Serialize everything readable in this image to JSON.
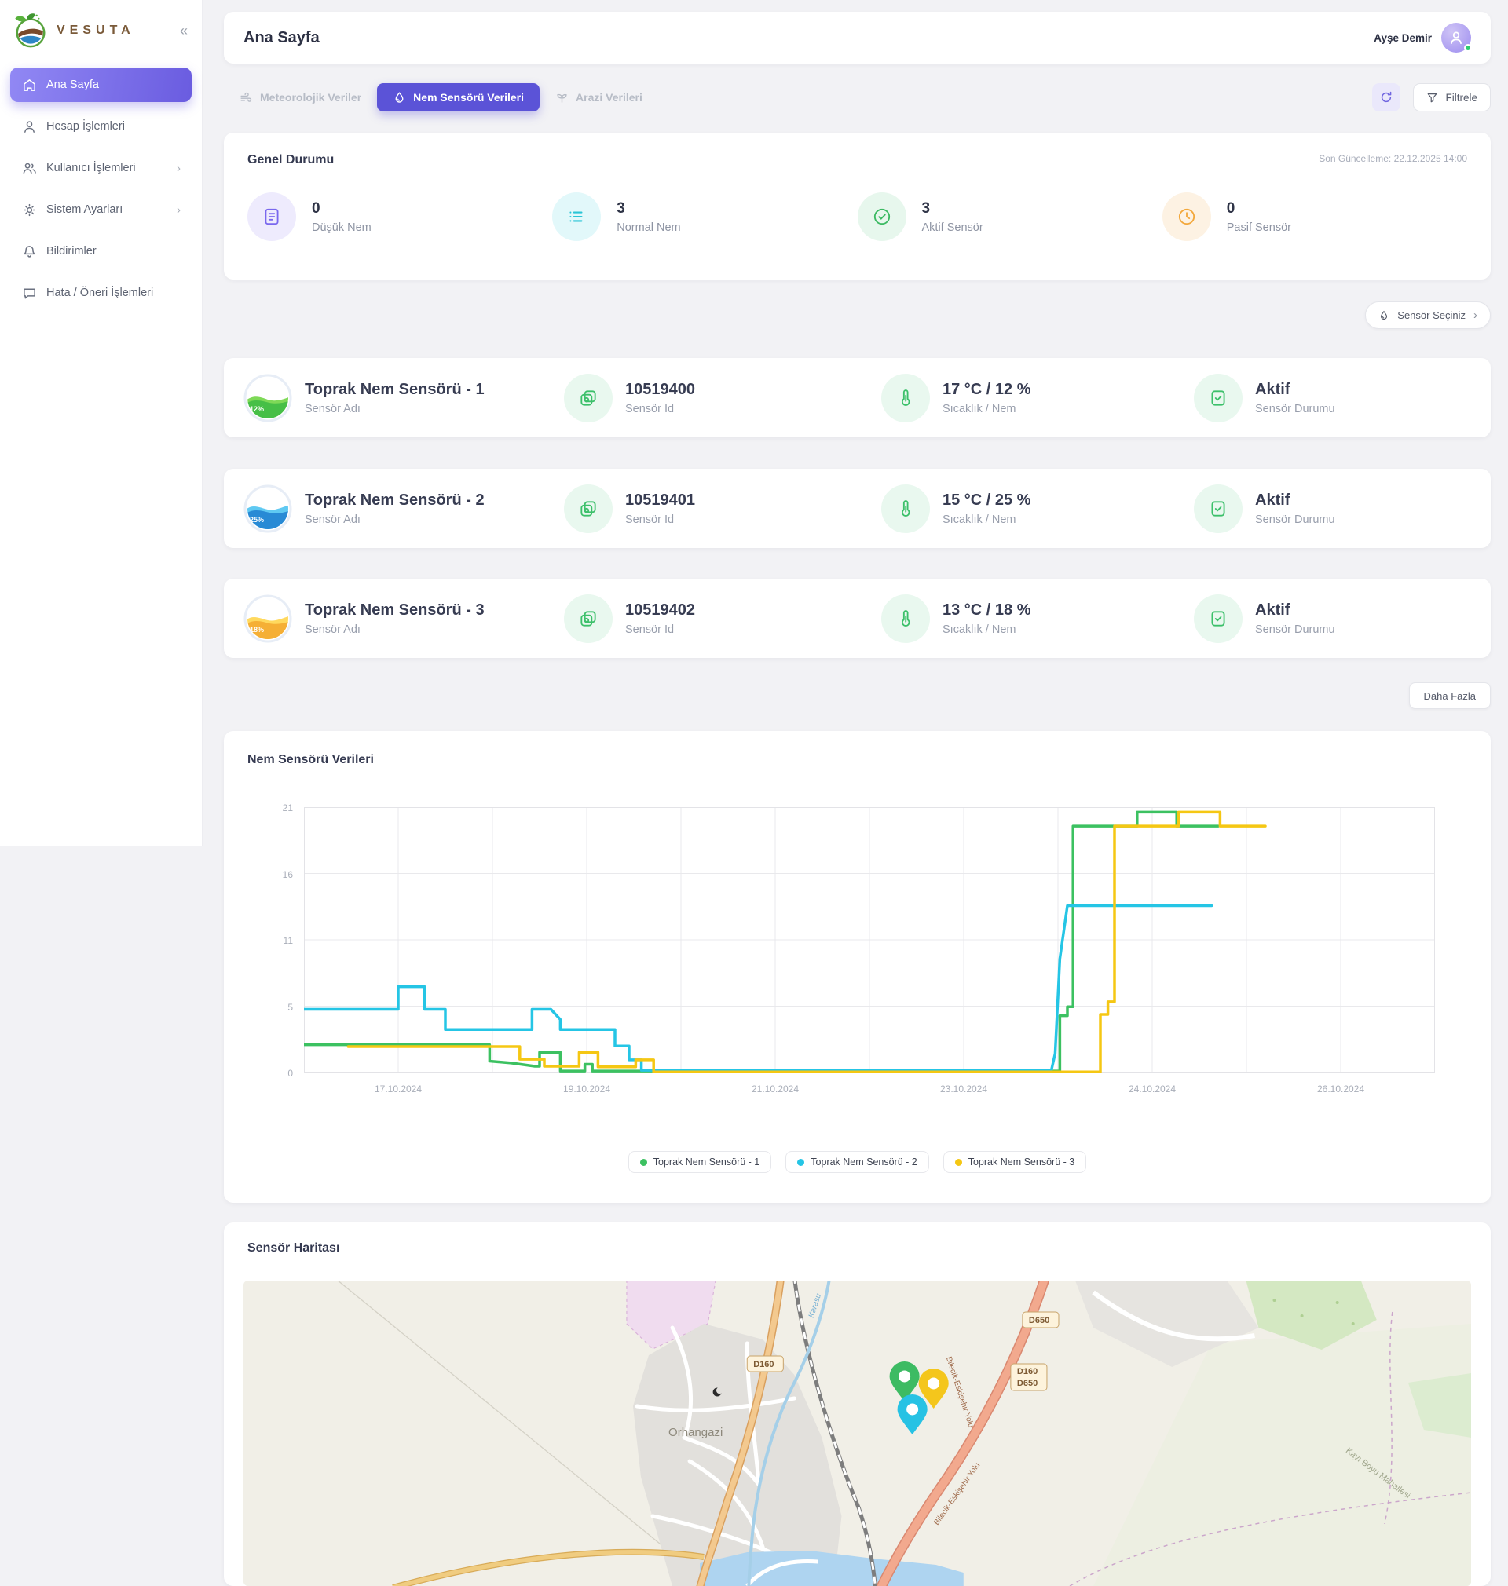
{
  "brand": {
    "name": "VESUTA"
  },
  "sidebar": {
    "items": [
      {
        "label": "Ana Sayfa",
        "active": true
      },
      {
        "label": "Hesap İşlemleri"
      },
      {
        "label": "Kullanıcı İşlemleri",
        "chevron": "›"
      },
      {
        "label": "Sistem Ayarları",
        "chevron": "›"
      },
      {
        "label": "Bildirimler"
      },
      {
        "label": "Hata / Öneri İşlemleri"
      }
    ]
  },
  "header": {
    "title": "Ana Sayfa",
    "user_name": "Ayşe Demir"
  },
  "tabs": [
    {
      "label": "Meteorolojik Veriler"
    },
    {
      "label": "Nem Sensörü Verileri",
      "active": true
    },
    {
      "label": "Arazi Verileri"
    }
  ],
  "toolbar": {
    "filter_label": "Filtrele"
  },
  "overview": {
    "title": "Genel Durumu",
    "last_update": "Son Güncelleme: 22.12.2025 14:00",
    "stats": [
      {
        "value": "0",
        "label": "Düşük Nem",
        "color": "#7a68ee",
        "bg": "#eeebfd"
      },
      {
        "value": "3",
        "label": "Normal Nem",
        "color": "#29c5d6",
        "bg": "#e2f8fa"
      },
      {
        "value": "3",
        "label": "Aktif Sensör",
        "color": "#3cba63",
        "bg": "#e7f7ed"
      },
      {
        "value": "0",
        "label": "Pasif Sensör",
        "color": "#f3a83c",
        "bg": "#fdf2e3"
      }
    ]
  },
  "sensor_select": {
    "label": "Sensör Seçiniz",
    "chevron": "›"
  },
  "labels": {
    "sensor_name": "Sensör Adı",
    "sensor_id": "Sensör Id",
    "temp_hum": "Sıcaklık / Nem",
    "sensor_status": "Sensör Durumu",
    "more": "Daha Fazla"
  },
  "sensors": [
    {
      "name": "Toprak Nem Sensörü - 1",
      "percent": "12%",
      "id": "10519400",
      "temp": "17 °C / 12 %",
      "status": "Aktif",
      "color": "#3cc161"
    },
    {
      "name": "Toprak Nem Sensörü - 2",
      "percent": "25%",
      "id": "10519401",
      "temp": "15 °C / 25 %",
      "status": "Aktif",
      "color": "#25c5e5"
    },
    {
      "name": "Toprak Nem Sensörü - 3",
      "percent": "18%",
      "id": "10519402",
      "temp": "13 °C / 18 %",
      "status": "Aktif",
      "color": "#f5c713"
    }
  ],
  "chart_data": {
    "type": "line",
    "title": "Nem Sensörü Verileri",
    "ylabel": "",
    "xlabel": "",
    "ylim": [
      0,
      21
    ],
    "y_ticks": [
      0,
      5,
      11,
      16,
      21
    ],
    "x_units": 12,
    "grid": true,
    "legend_position": "bottom",
    "x_ticks": [
      {
        "pos": 1,
        "label": "17.10.2024"
      },
      {
        "pos": 3,
        "label": "19.10.2024"
      },
      {
        "pos": 5,
        "label": "21.10.2024"
      },
      {
        "pos": 7,
        "label": "23.10.2024"
      },
      {
        "pos": 9,
        "label": "24.10.2024"
      },
      {
        "pos": 11,
        "label": "26.10.2024"
      }
    ],
    "series": [
      {
        "name": "Toprak Nem Sensörü - 1",
        "color": "#3cc161",
        "points": [
          [
            0,
            2.2
          ],
          [
            1.97,
            2.2
          ],
          [
            1.97,
            0.9
          ],
          [
            2.2,
            0.75
          ],
          [
            2.45,
            0.5
          ],
          [
            2.5,
            0.5
          ],
          [
            2.5,
            1.6
          ],
          [
            2.72,
            1.6
          ],
          [
            2.72,
            0.12
          ],
          [
            2.98,
            0.12
          ],
          [
            2.98,
            0.65
          ],
          [
            3.06,
            0.65
          ],
          [
            3.06,
            0.12
          ],
          [
            8.02,
            0.12
          ],
          [
            8.02,
            4.5
          ],
          [
            8.1,
            4.5
          ],
          [
            8.1,
            5.2
          ],
          [
            8.16,
            5.2
          ],
          [
            8.16,
            19.5
          ],
          [
            8.84,
            19.5
          ],
          [
            8.84,
            20.6
          ],
          [
            9.26,
            20.6
          ],
          [
            9.26,
            19.5
          ],
          [
            9.7,
            19.5
          ]
        ]
      },
      {
        "name": "Toprak Nem Sensörü - 2",
        "color": "#25c5e5",
        "points": [
          [
            0,
            5
          ],
          [
            1.0,
            5
          ],
          [
            1.0,
            6.8
          ],
          [
            1.28,
            6.8
          ],
          [
            1.28,
            5
          ],
          [
            1.5,
            5
          ],
          [
            1.5,
            3.4
          ],
          [
            2.42,
            3.4
          ],
          [
            2.42,
            5.0
          ],
          [
            2.62,
            5.0
          ],
          [
            2.72,
            4.2
          ],
          [
            2.72,
            3.4
          ],
          [
            3.3,
            3.4
          ],
          [
            3.3,
            2.1
          ],
          [
            3.45,
            2.1
          ],
          [
            3.45,
            1.0
          ],
          [
            3.58,
            1.0
          ],
          [
            3.58,
            0.18
          ],
          [
            7.93,
            0.18
          ],
          [
            7.97,
            1.5
          ],
          [
            8.02,
            9
          ],
          [
            8.1,
            13.2
          ],
          [
            9.63,
            13.2
          ]
        ]
      },
      {
        "name": "Toprak Nem Sensörü - 3",
        "color": "#f5c713",
        "points": [
          [
            0.47,
            2.05
          ],
          [
            2.29,
            2.05
          ],
          [
            2.29,
            1.05
          ],
          [
            2.55,
            1.05
          ],
          [
            2.55,
            0.5
          ],
          [
            2.92,
            0.5
          ],
          [
            2.92,
            1.6
          ],
          [
            3.12,
            1.6
          ],
          [
            3.12,
            0.45
          ],
          [
            3.52,
            0.45
          ],
          [
            3.52,
            1.0
          ],
          [
            3.71,
            1.0
          ],
          [
            3.71,
            0.05
          ],
          [
            8.45,
            0.05
          ],
          [
            8.45,
            4.6
          ],
          [
            8.53,
            4.6
          ],
          [
            8.53,
            5.6
          ],
          [
            8.6,
            5.6
          ],
          [
            8.6,
            19.5
          ],
          [
            9.28,
            19.5
          ],
          [
            9.28,
            20.6
          ],
          [
            9.72,
            20.6
          ],
          [
            9.72,
            19.5
          ],
          [
            10.2,
            19.5
          ]
        ]
      }
    ]
  },
  "map": {
    "title": "Sensör Haritası",
    "place_label": "Orhangazi",
    "river_label": "Karasu",
    "district_label": "Kayı Boyu Mahallesi",
    "road_name": "Bilecik-Eskişehir Yolu",
    "badge_d160": "D160",
    "badge_d650": "D650",
    "pin_colors": {
      "sensor1": "#3dbb63",
      "sensor2": "#27c2e4",
      "sensor3": "#f4c61c"
    }
  }
}
